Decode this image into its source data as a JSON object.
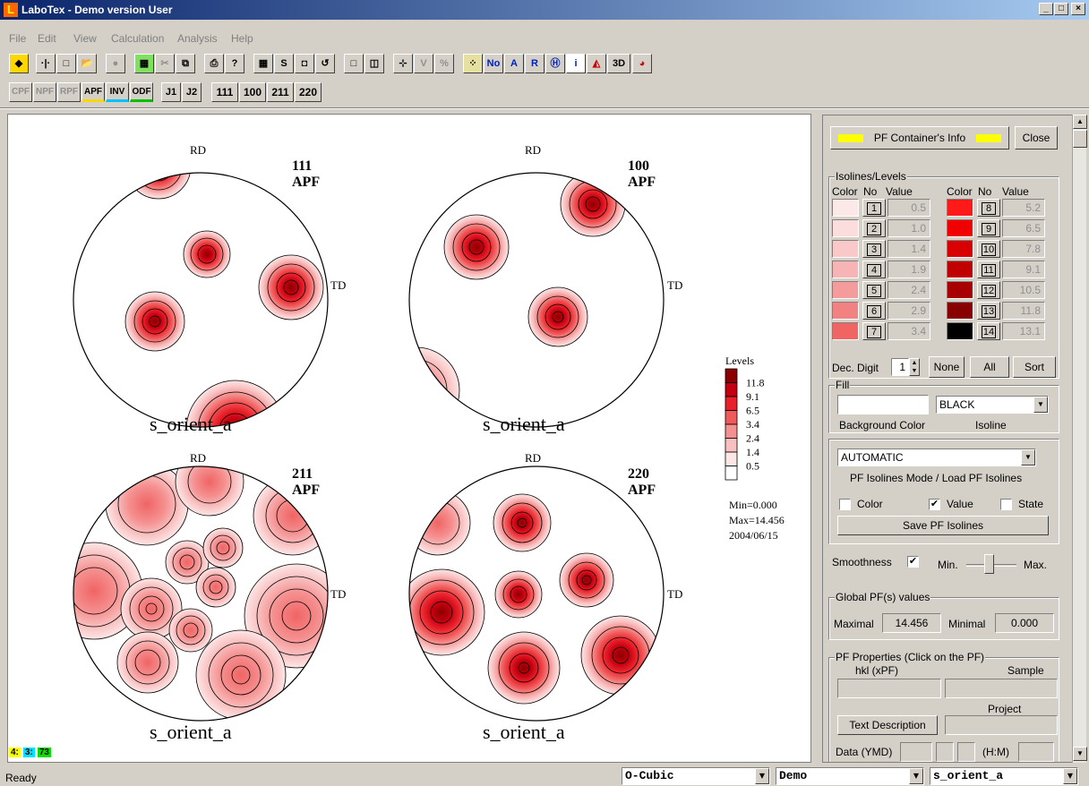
{
  "window": {
    "title": "LaboTex - Demo version User",
    "app_icon": "L",
    "controls": [
      "_",
      "□",
      "×"
    ]
  },
  "menu": [
    "File",
    "Edit",
    "View",
    "Calculation",
    "Analysis",
    "Help"
  ],
  "toolbar2": {
    "mode_buttons": [
      "CPF",
      "NPF",
      "RPF",
      "APF",
      "INV",
      "ODF"
    ],
    "j_buttons": [
      "J1",
      "J2"
    ],
    "hkl_buttons": [
      "111",
      "100",
      "211",
      "220"
    ]
  },
  "pole_figures": [
    {
      "hkl": "111",
      "type": "APF",
      "name": "s_orient_a",
      "rd": "RD",
      "td": "TD"
    },
    {
      "hkl": "100",
      "type": "APF",
      "name": "s_orient_a",
      "rd": "RD",
      "td": "TD"
    },
    {
      "hkl": "211",
      "type": "APF",
      "name": "s_orient_a",
      "rd": "RD",
      "td": "TD"
    },
    {
      "hkl": "220",
      "type": "APF",
      "name": "s_orient_a",
      "rd": "RD",
      "td": "TD"
    }
  ],
  "legend": {
    "title": "Levels",
    "levels": [
      "11.8",
      "9.1",
      "6.5",
      "3.4",
      "2.4",
      "1.4",
      "0.5"
    ],
    "colors": [
      "#8b0000",
      "#c40010",
      "#e8202a",
      "#f05a5a",
      "#f59090",
      "#f9c0c0",
      "#fde6e6",
      "#ffffff"
    ],
    "min": "Min=0.000",
    "max": "Max=14.456",
    "date": "2004/06/15"
  },
  "panel": {
    "info_button": "PF Container's Info",
    "close_button": "Close",
    "isolines_group": "Isolines/Levels",
    "col_color": "Color",
    "col_no": "No",
    "col_value": "Value",
    "levels_left": [
      {
        "no": "1",
        "value": "0.5",
        "color": "#fde8e8"
      },
      {
        "no": "2",
        "value": "1.0",
        "color": "#fcdcdc"
      },
      {
        "no": "3",
        "value": "1.4",
        "color": "#f9c8c8"
      },
      {
        "no": "4",
        "value": "1.9",
        "color": "#f7b4b4"
      },
      {
        "no": "5",
        "value": "2.4",
        "color": "#f49c9c"
      },
      {
        "no": "6",
        "value": "2.9",
        "color": "#f28282"
      },
      {
        "no": "7",
        "value": "3.4",
        "color": "#f06464"
      }
    ],
    "levels_right": [
      {
        "no": "8",
        "value": "5.2",
        "color": "#ff1a1a"
      },
      {
        "no": "9",
        "value": "6.5",
        "color": "#f00000"
      },
      {
        "no": "10",
        "value": "7.8",
        "color": "#d80000"
      },
      {
        "no": "11",
        "value": "9.1",
        "color": "#c00000"
      },
      {
        "no": "12",
        "value": "10.5",
        "color": "#a80000"
      },
      {
        "no": "13",
        "value": "11.8",
        "color": "#880000"
      },
      {
        "no": "14",
        "value": "13.1",
        "color": "#000000"
      }
    ],
    "dec_digit_label": "Dec. Digit",
    "dec_digit_value": "1",
    "none_button": "None",
    "all_button": "All",
    "sort_button": "Sort",
    "fill_group": "Fill",
    "isoline_color": "BLACK",
    "bg_color_label": "Background Color",
    "isoline_label": "Isoline",
    "mode_value": "AUTOMATIC",
    "mode_label": "PF Isolines Mode / Load PF Isolines",
    "check_color": "Color",
    "check_value": "Value",
    "check_state": "State",
    "save_button": "Save PF Isolines",
    "smoothness_label": "Smoothness",
    "min_label": "Min.",
    "max_label": "Max.",
    "global_group": "Global PF(s) values",
    "maximal_label": "Maximal",
    "maximal_value": "14.456",
    "minimal_label": "Minimal",
    "minimal_value": "0.000",
    "props_group": "PF Properties  (Click on the PF)",
    "hkl_label": "hkl  (xPF)",
    "sample_label": "Sample",
    "project_label": "Project",
    "text_desc_button": "Text  Description",
    "data_label": "Data (YMD)",
    "hm_label": "(H:M)"
  },
  "status": {
    "ready": "Ready",
    "badges": [
      "4:",
      "3:",
      "73"
    ],
    "symmetry": "O-Cubic",
    "project": "Demo",
    "sample": "s_orient_a"
  }
}
